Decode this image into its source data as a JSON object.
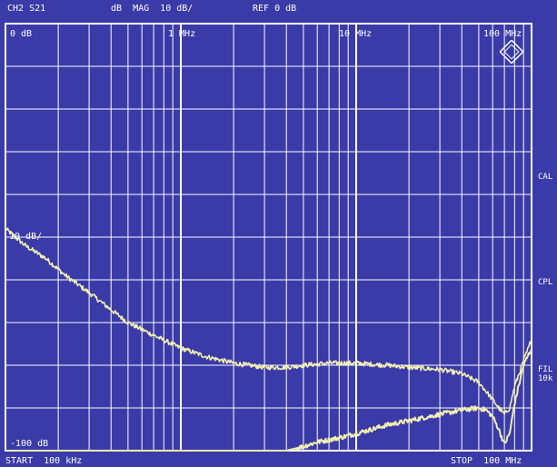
{
  "header": {
    "channel": "CH2 S21",
    "format": "dB  MAG  10 dB/",
    "ref": "REF 0 dB"
  },
  "footer": {
    "start": "START  100 kHz",
    "stop": "STOP  100 MHz"
  },
  "side_labels": {
    "cal": "CAL",
    "cpl": "CPL",
    "fil_1": "FIL",
    "fil_2": "10k"
  },
  "colors": {
    "background": "#3a3aa8",
    "grid": "#ffffff",
    "trace": "#f2efb0"
  },
  "chart_data": {
    "type": "line",
    "x_scale": "log",
    "x_unit": "Hz",
    "y_unit": "dB",
    "xlim": [
      100000,
      100000000
    ],
    "ylim": [
      -100,
      0
    ],
    "grid": true,
    "x_tick_labels": [
      {
        "value": 1000000,
        "label": "1 MHz"
      },
      {
        "value": 10000000,
        "label": "10 MHz"
      },
      {
        "value": 100000000,
        "label": "100 MHz"
      }
    ],
    "y_tick_labels": [
      {
        "value": 0,
        "label": "0 dB"
      },
      {
        "value": -50,
        "label": "10 dB/"
      },
      {
        "value": -100,
        "label": "-100 dB"
      }
    ],
    "series": [
      {
        "x": [
          100000,
          130000,
          170000,
          220000,
          300000,
          400000,
          500000,
          700000,
          1000000,
          1400000,
          2000000,
          3000000,
          4000000,
          5000000,
          7000000,
          10000000,
          15000000,
          20000000,
          30000000,
          40000000,
          50000000,
          60000000,
          65000000,
          70000000,
          75000000,
          80000000,
          90000000,
          100000000
        ],
        "y": [
          -48,
          -52,
          -55,
          -59,
          -63,
          -67,
          -70,
          -73,
          -76,
          -78,
          -79.5,
          -80.5,
          -80.5,
          -80,
          -79.5,
          -79.5,
          -80,
          -80.5,
          -81,
          -82,
          -84,
          -88,
          -90,
          -91.5,
          -90,
          -85,
          -79,
          -74
        ]
      },
      {
        "x": [
          100000,
          1000000,
          4000000,
          5000000,
          6000000,
          8000000,
          10000000,
          15000000,
          20000000,
          30000000,
          40000000,
          50000000,
          55000000,
          60000000,
          65000000,
          70000000,
          75000000,
          80000000,
          90000000,
          100000000
        ],
        "y": [
          -100,
          -100,
          -100,
          -99,
          -98,
          -97,
          -96,
          -94,
          -93,
          -91.5,
          -90.5,
          -90,
          -90.5,
          -92,
          -95,
          -98.5,
          -96,
          -89,
          -80,
          -76
        ]
      }
    ]
  }
}
